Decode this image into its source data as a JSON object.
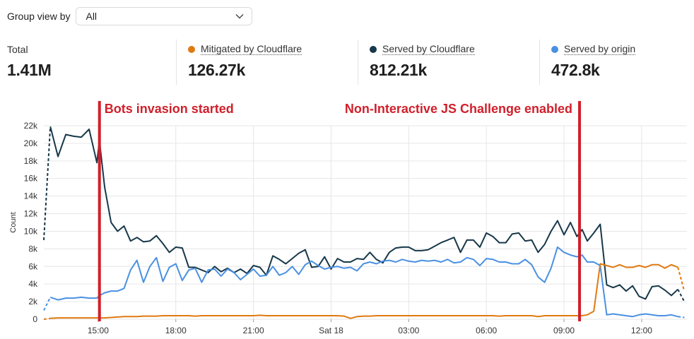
{
  "header": {
    "group_label": "Group view by",
    "group_value": "All"
  },
  "stats": [
    {
      "label": "Total",
      "value": "1.41M"
    },
    {
      "label": "Mitigated by Cloudflare",
      "value": "126.27k",
      "color": "#e07a10"
    },
    {
      "label": "Served by Cloudflare",
      "value": "812.21k",
      "color": "#17384a"
    },
    {
      "label": "Served by origin",
      "value": "472.8k",
      "color": "#4a90e2"
    }
  ],
  "colors": {
    "mitigated": "#e07a10",
    "served_cf": "#17384a",
    "served_origin": "#4a90e2",
    "annotation": "#d0202b",
    "grid": "#e6e6e6"
  },
  "annotations": [
    {
      "text": "Bots invasion started",
      "x": 15.05
    },
    {
      "text": "Non-Interactive JS Challenge enabled",
      "x": 33.6
    }
  ],
  "chart_data": {
    "type": "line",
    "ylabel": "Count",
    "xlabel": "",
    "ylim": [
      0,
      22000
    ],
    "xlim": [
      12.9,
      37.75
    ],
    "yticks": [
      0,
      2000,
      4000,
      6000,
      8000,
      10000,
      12000,
      14000,
      16000,
      18000,
      20000,
      22000
    ],
    "ytick_labels": [
      "0",
      "2k",
      "4k",
      "6k",
      "8k",
      "10k",
      "12k",
      "14k",
      "16k",
      "18k",
      "20k",
      "22k"
    ],
    "xticks": [
      15,
      18,
      21,
      24,
      27,
      30,
      33,
      36
    ],
    "xtick_labels": [
      "15:00",
      "18:00",
      "21:00",
      "Sat 18",
      "03:00",
      "06:00",
      "09:00",
      "12:00"
    ],
    "grid": true,
    "series": [
      {
        "name": "Served by Cloudflare",
        "x": [
          12.9,
          13.15,
          13.45,
          13.75,
          14.05,
          14.35,
          14.65,
          14.95,
          15.05,
          15.25,
          15.5,
          15.75,
          16.0,
          16.25,
          16.5,
          16.75,
          17.0,
          17.25,
          17.5,
          17.75,
          18.0,
          18.25,
          18.5,
          18.75,
          19.0,
          19.25,
          19.5,
          19.75,
          20.0,
          20.25,
          20.5,
          20.75,
          21.0,
          21.25,
          21.5,
          21.75,
          22.0,
          22.25,
          22.5,
          22.75,
          23.0,
          23.25,
          23.5,
          23.75,
          24.0,
          24.25,
          24.5,
          24.75,
          25.0,
          25.25,
          25.5,
          25.75,
          26.0,
          26.25,
          26.5,
          26.75,
          27.0,
          27.25,
          27.5,
          27.75,
          28.0,
          28.25,
          28.5,
          28.75,
          29.0,
          29.25,
          29.5,
          29.75,
          30.0,
          30.25,
          30.5,
          30.75,
          31.0,
          31.25,
          31.5,
          31.75,
          32.0,
          32.25,
          32.5,
          32.75,
          33.0,
          33.25,
          33.5,
          33.7,
          33.9,
          34.15,
          34.4,
          34.65,
          34.9,
          35.15,
          35.4,
          35.65,
          35.9,
          36.15,
          36.4,
          36.65,
          36.9,
          37.15,
          37.4,
          37.65
        ],
        "values": [
          9000,
          21900,
          18500,
          21000,
          20800,
          20700,
          21600,
          17800,
          20300,
          15000,
          11000,
          10000,
          10600,
          8900,
          9300,
          8800,
          8900,
          9500,
          8600,
          7600,
          8200,
          8100,
          5900,
          5900,
          5600,
          5300,
          6000,
          5400,
          5800,
          5300,
          5700,
          5200,
          6100,
          5900,
          5000,
          7200,
          6800,
          6300,
          6900,
          7500,
          7900,
          5900,
          6000,
          7100,
          5700,
          6900,
          6500,
          6500,
          6900,
          6800,
          7600,
          6800,
          6400,
          7600,
          8100,
          8200,
          8200,
          7800,
          7800,
          7900,
          8300,
          8700,
          9000,
          9300,
          7600,
          9000,
          9000,
          8200,
          9800,
          9400,
          8700,
          8700,
          9700,
          9800,
          8900,
          9000,
          7600,
          8500,
          10000,
          11200,
          9600,
          11000,
          9400,
          10200,
          8900,
          9800,
          10800,
          3900,
          3600,
          3900,
          3200,
          3800,
          2600,
          2300,
          3700,
          3800,
          3300,
          2700,
          3400,
          2000
        ],
        "dashed_first": 1,
        "dashed_last": 1
      },
      {
        "name": "Served by origin",
        "x": [
          12.9,
          13.15,
          13.45,
          13.75,
          14.05,
          14.35,
          14.65,
          14.95,
          15.05,
          15.25,
          15.5,
          15.75,
          16.0,
          16.25,
          16.5,
          16.75,
          17.0,
          17.25,
          17.5,
          17.75,
          18.0,
          18.25,
          18.5,
          18.75,
          19.0,
          19.25,
          19.5,
          19.75,
          20.0,
          20.25,
          20.5,
          20.75,
          21.0,
          21.25,
          21.5,
          21.75,
          22.0,
          22.25,
          22.5,
          22.75,
          23.0,
          23.25,
          23.5,
          23.75,
          24.0,
          24.25,
          24.5,
          24.75,
          25.0,
          25.25,
          25.5,
          25.75,
          26.0,
          26.25,
          26.5,
          26.75,
          27.0,
          27.25,
          27.5,
          27.75,
          28.0,
          28.25,
          28.5,
          28.75,
          29.0,
          29.25,
          29.5,
          29.75,
          30.0,
          30.25,
          30.5,
          30.75,
          31.0,
          31.25,
          31.5,
          31.75,
          32.0,
          32.25,
          32.5,
          32.75,
          33.0,
          33.25,
          33.5,
          33.7,
          33.9,
          34.15,
          34.4,
          34.65,
          34.9,
          35.15,
          35.4,
          35.65,
          35.9,
          36.15,
          36.4,
          36.65,
          36.9,
          37.15,
          37.4,
          37.65
        ],
        "values": [
          1000,
          2500,
          2200,
          2400,
          2400,
          2500,
          2400,
          2400,
          2700,
          3000,
          3200,
          3200,
          3500,
          5600,
          6700,
          4200,
          6000,
          7000,
          4300,
          5900,
          6300,
          4400,
          5600,
          5800,
          4200,
          5600,
          5700,
          4900,
          5700,
          5300,
          4500,
          5100,
          5700,
          4900,
          5000,
          6000,
          5000,
          5300,
          6000,
          5100,
          6200,
          6600,
          6100,
          5700,
          5900,
          6000,
          5800,
          5900,
          5500,
          6300,
          6500,
          6300,
          6600,
          6700,
          6500,
          6800,
          6600,
          6500,
          6700,
          6600,
          6700,
          6500,
          6800,
          6400,
          6500,
          7000,
          6800,
          6100,
          6900,
          6800,
          6500,
          6500,
          6300,
          6300,
          6800,
          6200,
          4800,
          4200,
          5800,
          8200,
          7600,
          7300,
          7100,
          7300,
          6500,
          6500,
          6100,
          500,
          600,
          500,
          400,
          300,
          500,
          600,
          500,
          400,
          400,
          500,
          300,
          200
        ],
        "dashed_first": 1,
        "dashed_last": 1
      },
      {
        "name": "Mitigated by Cloudflare",
        "x": [
          12.9,
          13.15,
          13.45,
          13.75,
          14.05,
          14.35,
          14.65,
          14.95,
          15.05,
          15.25,
          15.5,
          15.75,
          16.0,
          16.25,
          16.5,
          16.75,
          17.0,
          17.25,
          17.5,
          17.75,
          18.0,
          18.25,
          18.5,
          18.75,
          19.0,
          19.25,
          19.5,
          19.75,
          20.0,
          20.25,
          20.5,
          20.75,
          21.0,
          21.25,
          21.5,
          21.75,
          22.0,
          22.25,
          22.5,
          22.75,
          23.0,
          23.25,
          23.5,
          23.75,
          24.0,
          24.25,
          24.5,
          24.75,
          25.0,
          25.25,
          25.5,
          25.75,
          26.0,
          26.25,
          26.5,
          26.75,
          27.0,
          27.25,
          27.5,
          27.75,
          28.0,
          28.25,
          28.5,
          28.75,
          29.0,
          29.25,
          29.5,
          29.75,
          30.0,
          30.25,
          30.5,
          30.75,
          31.0,
          31.25,
          31.5,
          31.75,
          32.0,
          32.25,
          32.5,
          32.75,
          33.0,
          33.25,
          33.5,
          33.7,
          33.9,
          34.15,
          34.4,
          34.65,
          34.9,
          35.15,
          35.4,
          35.65,
          35.9,
          36.15,
          36.4,
          36.65,
          36.9,
          37.15,
          37.4,
          37.65
        ],
        "values": [
          0,
          100,
          150,
          150,
          150,
          150,
          150,
          150,
          150,
          150,
          200,
          250,
          300,
          300,
          300,
          350,
          350,
          350,
          400,
          400,
          400,
          400,
          400,
          350,
          400,
          400,
          400,
          400,
          400,
          400,
          400,
          400,
          400,
          450,
          400,
          400,
          400,
          400,
          400,
          400,
          400,
          400,
          400,
          400,
          400,
          400,
          350,
          100,
          300,
          350,
          350,
          400,
          400,
          400,
          400,
          400,
          400,
          400,
          400,
          400,
          400,
          400,
          400,
          400,
          400,
          400,
          400,
          400,
          400,
          400,
          350,
          400,
          400,
          400,
          400,
          400,
          300,
          400,
          400,
          400,
          400,
          400,
          400,
          400,
          500,
          900,
          6300,
          6100,
          5900,
          6200,
          5900,
          5900,
          6100,
          5900,
          6200,
          6200,
          5800,
          6200,
          5900,
          3200
        ],
        "dashed_first": 1,
        "dashed_last": 1
      }
    ]
  }
}
